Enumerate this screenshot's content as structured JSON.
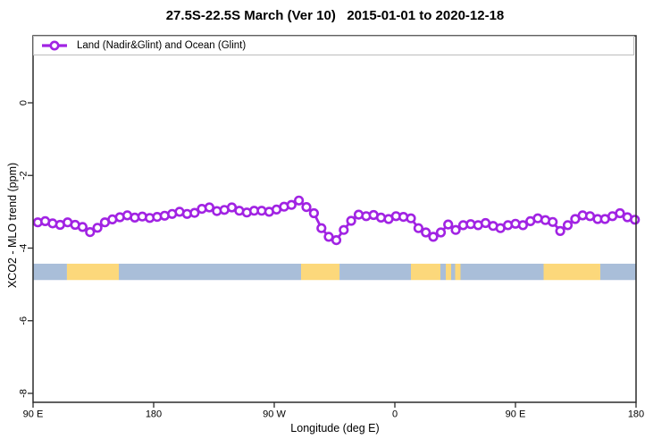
{
  "title": "27.5S-22.5S March (Ver 10)   2015-01-01 to 2020-12-18",
  "legend": {
    "label": "Land (Nadir&Glint) and Ocean (Glint)"
  },
  "axes": {
    "x_label": "Longitude (deg E)",
    "y_label": "XCO2 - MLO trend (ppm)",
    "x_ticks": [
      {
        "label": "90 E",
        "lon": 90
      },
      {
        "label": "180",
        "lon": 180
      },
      {
        "label": "90 W",
        "lon": 270
      },
      {
        "label": "0",
        "lon": 360
      },
      {
        "label": "90 E",
        "lon": 450
      },
      {
        "label": "180",
        "lon": 540
      }
    ],
    "y_ticks": [
      {
        "label": "0",
        "value": 0
      },
      {
        "label": "-2",
        "value": -2
      },
      {
        "label": "-4",
        "value": -4
      },
      {
        "label": "-6",
        "value": -6
      },
      {
        "label": "-8",
        "value": -8
      }
    ]
  },
  "colors": {
    "series": "#a123e3",
    "marker_fill": "#ffffff",
    "ocean_band": "#a9bed9",
    "land_band": "#fcd87b",
    "frame": "#2b2b2b",
    "legend_border": "#bdbdbd"
  },
  "chart_data": {
    "type": "line",
    "title": "27.5S-22.5S March (Ver 10)   2015-01-01 to 2020-12-18",
    "xlabel": "Longitude (deg E)",
    "ylabel": "XCO2 - MLO trend (ppm)",
    "x_axis_note": "longitude shown continuously 90E->180->90W->0->90E->180 (90 to 540 deg E)",
    "xlim": [
      90,
      540
    ],
    "ylim": [
      -8.25,
      1.85
    ],
    "grid": false,
    "legend_position": "top-left, full-width box inside plot",
    "series": [
      {
        "name": "Land (Nadir&Glint) and Ocean (Glint)",
        "marker": "open-circle",
        "color": "#a123e3",
        "lon": [
          93.5,
          99.1,
          104.6,
          110.2,
          115.8,
          121.4,
          126.9,
          132.5,
          138.1,
          143.6,
          149.2,
          154.8,
          160.3,
          165.9,
          171.5,
          177.1,
          182.6,
          188.2,
          193.8,
          199.3,
          204.9,
          210.5,
          216.0,
          221.6,
          227.2,
          232.8,
          238.3,
          243.9,
          249.5,
          255.0,
          260.6,
          266.2,
          271.7,
          277.3,
          282.9,
          288.4,
          294.0,
          299.6,
          305.2,
          310.7,
          316.3,
          321.9,
          327.4,
          333.0,
          338.6,
          344.1,
          349.7,
          355.3,
          360.9,
          366.4,
          372.0,
          377.6,
          383.1,
          388.7,
          394.3,
          399.8,
          405.4,
          411.0,
          416.6,
          422.1,
          427.7,
          433.3,
          438.8,
          444.4,
          450.0,
          455.6,
          461.1,
          466.7,
          472.3,
          477.8,
          483.4,
          489.0,
          494.6,
          500.1,
          505.7,
          511.3,
          516.8,
          522.4,
          528.0,
          533.5,
          539.1
        ],
        "ppm": [
          -3.29,
          -3.26,
          -3.32,
          -3.36,
          -3.29,
          -3.36,
          -3.42,
          -3.56,
          -3.44,
          -3.29,
          -3.21,
          -3.15,
          -3.1,
          -3.16,
          -3.13,
          -3.17,
          -3.14,
          -3.11,
          -3.06,
          -3.0,
          -3.06,
          -3.03,
          -2.92,
          -2.88,
          -2.98,
          -2.95,
          -2.88,
          -2.97,
          -3.02,
          -2.97,
          -2.97,
          -3.0,
          -2.94,
          -2.86,
          -2.81,
          -2.69,
          -2.87,
          -3.04,
          -3.45,
          -3.69,
          -3.78,
          -3.5,
          -3.25,
          -3.08,
          -3.12,
          -3.09,
          -3.16,
          -3.2,
          -3.12,
          -3.14,
          -3.18,
          -3.45,
          -3.57,
          -3.69,
          -3.57,
          -3.35,
          -3.5,
          -3.37,
          -3.34,
          -3.37,
          -3.31,
          -3.39,
          -3.45,
          -3.37,
          -3.33,
          -3.37,
          -3.26,
          -3.18,
          -3.23,
          -3.28,
          -3.53,
          -3.37,
          -3.2,
          -3.1,
          -3.12,
          -3.2,
          -3.2,
          -3.12,
          -3.04,
          -3.15,
          -3.22
        ]
      }
    ],
    "surface_band": {
      "description": "horizontal strip marking surface type along longitude",
      "y_range_ppm": [
        -4.43,
        -4.88
      ],
      "segments": [
        {
          "type": "ocean",
          "from": 90,
          "to": 115.3
        },
        {
          "type": "land",
          "from": 115.3,
          "to": 154
        },
        {
          "type": "ocean",
          "from": 154,
          "to": 290
        },
        {
          "type": "land",
          "from": 290,
          "to": 318.7
        },
        {
          "type": "ocean",
          "from": 318.7,
          "to": 372
        },
        {
          "type": "land",
          "from": 372,
          "to": 394
        },
        {
          "type": "ocean",
          "from": 394,
          "to": 398
        },
        {
          "type": "land",
          "from": 398,
          "to": 402
        },
        {
          "type": "ocean",
          "from": 402,
          "to": 405
        },
        {
          "type": "land",
          "from": 405,
          "to": 409
        },
        {
          "type": "ocean",
          "from": 409,
          "to": 471
        },
        {
          "type": "land",
          "from": 471,
          "to": 513.3
        },
        {
          "type": "ocean",
          "from": 513.3,
          "to": 540
        }
      ]
    }
  }
}
